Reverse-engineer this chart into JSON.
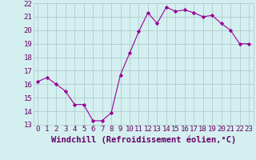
{
  "x": [
    0,
    1,
    2,
    3,
    4,
    5,
    6,
    7,
    8,
    9,
    10,
    11,
    12,
    13,
    14,
    15,
    16,
    17,
    18,
    19,
    20,
    21,
    22,
    23
  ],
  "y": [
    16.2,
    16.5,
    16.0,
    15.5,
    14.5,
    14.5,
    13.3,
    13.3,
    13.9,
    16.7,
    18.3,
    19.9,
    21.3,
    20.5,
    21.7,
    21.4,
    21.5,
    21.3,
    21.0,
    21.1,
    20.5,
    20.0,
    19.0,
    19.0
  ],
  "line_color": "#990099",
  "marker": "D",
  "marker_size": 2.2,
  "xlabel": "Windchill (Refroidissement éolien,°C)",
  "xlim": [
    -0.5,
    23.5
  ],
  "ylim": [
    13,
    22
  ],
  "yticks": [
    13,
    14,
    15,
    16,
    17,
    18,
    19,
    20,
    21,
    22
  ],
  "xticks": [
    0,
    1,
    2,
    3,
    4,
    5,
    6,
    7,
    8,
    9,
    10,
    11,
    12,
    13,
    14,
    15,
    16,
    17,
    18,
    19,
    20,
    21,
    22,
    23
  ],
  "bg_color": "#d4efef",
  "grid_color": "#b0cccc",
  "tick_label_fontsize": 6.5,
  "xlabel_fontsize": 7.5
}
